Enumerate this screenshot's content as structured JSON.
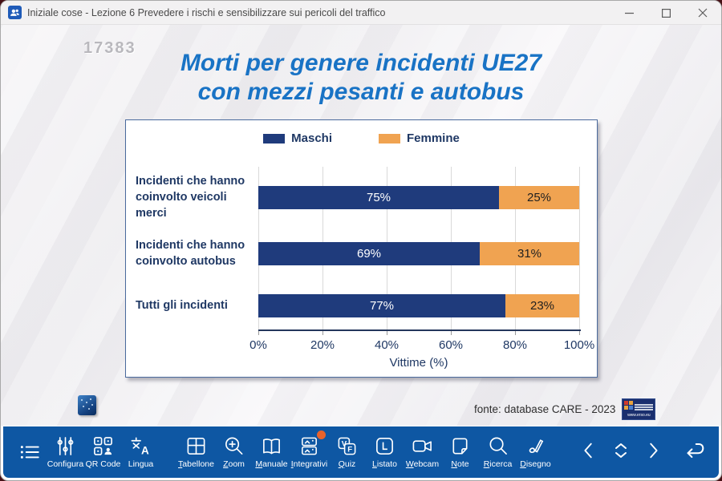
{
  "window": {
    "title": "Iniziale cose - Lezione 6 Prevedere i rischi e sensibilizzare sui pericoli del traffico"
  },
  "slide": {
    "number": "17383",
    "title_line1": "Morti per genere incidenti UE27",
    "title_line2": "con mezzi pesanti e autobus",
    "source": "fonte: database CARE -  2023",
    "logo_url_text": "www.erso.eu"
  },
  "chart_data": {
    "type": "bar",
    "orientation": "horizontal",
    "stacked": true,
    "title": "Morti per genere incidenti UE27 con mezzi pesanti e autobus",
    "categories": [
      "Incidenti che hanno coinvolto veicoli merci",
      "Incidenti che hanno coinvolto autobus",
      "Tutti gli incidenti"
    ],
    "series": [
      {
        "name": "Maschi",
        "color": "#1f3b7c",
        "label_color": "#ffffff",
        "values": [
          75,
          69,
          77
        ]
      },
      {
        "name": "Femmine",
        "color": "#f0a351",
        "label_color": "#1f1f1f",
        "values": [
          25,
          31,
          23
        ]
      }
    ],
    "xlabel": "Vittime (%)",
    "xticks": [
      "0%",
      "20%",
      "40%",
      "60%",
      "80%",
      "100%"
    ],
    "xlim": [
      0,
      100
    ],
    "grid": true,
    "legend_position": "top"
  },
  "toolbar": {
    "accent_dot_color": "#e8632c",
    "items": [
      {
        "icon": "menu-list-icon",
        "label": ""
      },
      {
        "icon": "sliders-icon",
        "label": "Configura"
      },
      {
        "icon": "qr-code-icon",
        "label": "QR Code"
      },
      {
        "icon": "translate-icon",
        "label": "Lingua"
      },
      {
        "icon": "grid-board-icon",
        "label": "Tabellone"
      },
      {
        "icon": "zoom-in-icon",
        "label": "Zoom"
      },
      {
        "icon": "open-book-icon",
        "label": "Manuale"
      },
      {
        "icon": "slides-stack-icon",
        "label": "Integrativi"
      },
      {
        "icon": "true-false-icon",
        "label": "Quiz"
      },
      {
        "icon": "letter-l-icon",
        "label": "Listato"
      },
      {
        "icon": "webcam-icon",
        "label": "Webcam"
      },
      {
        "icon": "note-icon",
        "label": "Note"
      },
      {
        "icon": "search-icon",
        "label": "Ricerca"
      },
      {
        "icon": "pen-icon",
        "label": "Disegno"
      }
    ]
  }
}
